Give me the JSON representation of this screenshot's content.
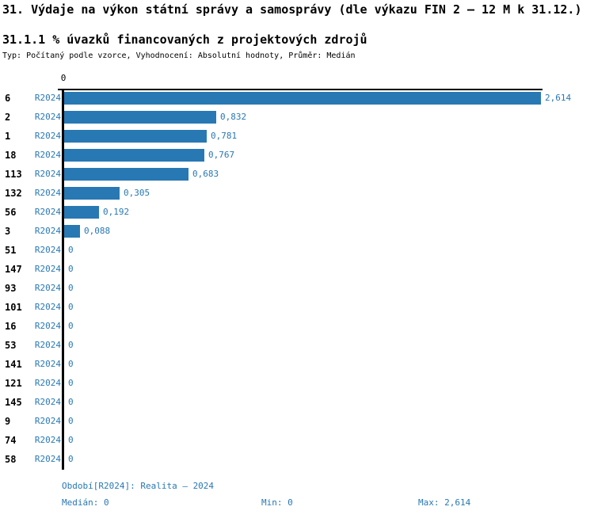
{
  "header": {
    "title": "31. Výdaje na výkon státní správy a samosprávy (dle výkazu FIN 2 – 12 M k 31.12.)",
    "subtitle": "31.1.1 % úvazků financovaných z projektových zdrojů",
    "meta": "Typ: Počítaný podle vzorce, Vyhodnocení: Absolutní hodnoty, Průměr: Medián"
  },
  "colors": {
    "bar": "#2878b4",
    "accent_text": "#2878b4",
    "axis": "#000000"
  },
  "chart_data": {
    "type": "bar",
    "orientation": "horizontal",
    "title": "31.1.1 % úvazků financovaných z projektových zdrojů",
    "categories": [
      "6",
      "2",
      "1",
      "18",
      "113",
      "132",
      "56",
      "3",
      "51",
      "147",
      "93",
      "101",
      "16",
      "53",
      "141",
      "121",
      "145",
      "9",
      "74",
      "58"
    ],
    "series_label": "R2024",
    "values": [
      2.614,
      0.832,
      0.781,
      0.767,
      0.683,
      0.305,
      0.192,
      0.088,
      0,
      0,
      0,
      0,
      0,
      0,
      0,
      0,
      0,
      0,
      0,
      0
    ],
    "value_labels": [
      "2,614",
      "0,832",
      "0,781",
      "0,767",
      "0,683",
      "0,305",
      "0,192",
      "0,088",
      "0",
      "0",
      "0",
      "0",
      "0",
      "0",
      "0",
      "0",
      "0",
      "0",
      "0",
      "0"
    ],
    "xlim": [
      0,
      2.614
    ],
    "axis_tick_label": "0",
    "grid": false,
    "legend": "none",
    "median": 0,
    "min": 0,
    "max": 2.614
  },
  "footer": {
    "period": "Období[R2024]: Realita – 2024",
    "median": "Medián: 0",
    "min": "Min: 0",
    "max": "Max: 2,614"
  }
}
